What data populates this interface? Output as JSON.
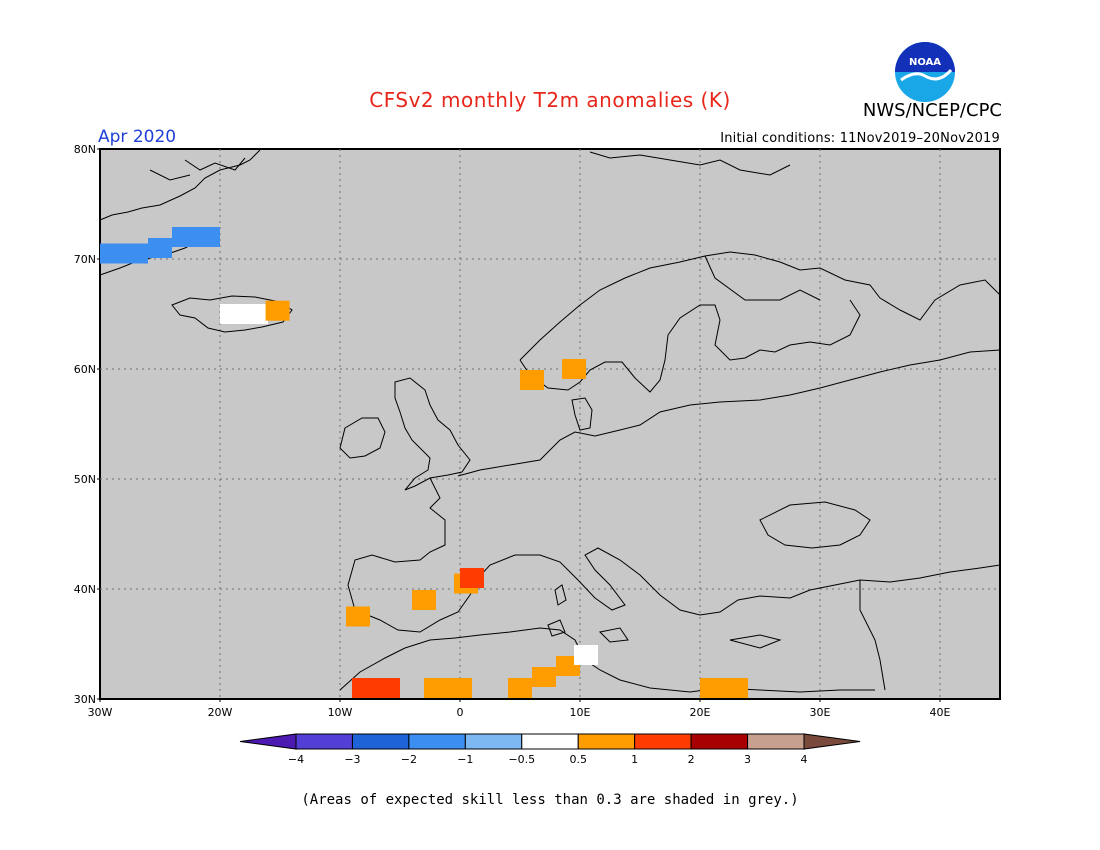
{
  "header": {
    "title": "CFSv2 monthly T2m anomalies (K)",
    "agency": "NWS/NCEP/CPC",
    "logo_text": "NOAA",
    "month": "Apr 2020",
    "initial_conditions": "Initial conditions: 11Nov2019–20Nov2019"
  },
  "map": {
    "region": "Europe",
    "background_color": "#c8c8c8",
    "lat_labels": [
      "30N",
      "40N",
      "50N",
      "60N",
      "70N",
      "80N"
    ],
    "lat_values": [
      30,
      40,
      50,
      60,
      70,
      80
    ],
    "lon_labels": [
      "30W",
      "20W",
      "10W",
      "0",
      "10E",
      "20E",
      "30E",
      "40E"
    ],
    "lon_values": [
      -30,
      -20,
      -10,
      0,
      10,
      20,
      30,
      40
    ],
    "lon_range": [
      -30,
      45
    ],
    "lat_range": [
      30,
      80
    ],
    "anomaly_cells": [
      {
        "lon": -29,
        "lat": 70.5,
        "class": "-1"
      },
      {
        "lon": -27,
        "lat": 70.5,
        "class": "-1"
      },
      {
        "lon": -25,
        "lat": 71,
        "class": "-1"
      },
      {
        "lon": -23,
        "lat": 72,
        "class": "-1"
      },
      {
        "lon": -21,
        "lat": 72,
        "class": "-1"
      },
      {
        "lon": -19,
        "lat": 65,
        "class": "0"
      },
      {
        "lon": -17,
        "lat": 65,
        "class": "0"
      },
      {
        "lon": -15.2,
        "lat": 65.3,
        "class": "0.5"
      },
      {
        "lon": 6,
        "lat": 59,
        "class": "0.5"
      },
      {
        "lon": 9.5,
        "lat": 60,
        "class": "0.5"
      },
      {
        "lon": -8.5,
        "lat": 37.5,
        "class": "0.5"
      },
      {
        "lon": -3,
        "lat": 39,
        "class": "0.5"
      },
      {
        "lon": 0.5,
        "lat": 40.5,
        "class": "0.5"
      },
      {
        "lon": 1,
        "lat": 41,
        "class": "1"
      },
      {
        "lon": -8,
        "lat": 31,
        "class": "1"
      },
      {
        "lon": -6,
        "lat": 31,
        "class": "1"
      },
      {
        "lon": -2,
        "lat": 31,
        "class": "0.5"
      },
      {
        "lon": 0,
        "lat": 31,
        "class": "0.5"
      },
      {
        "lon": 5,
        "lat": 31,
        "class": "0.5"
      },
      {
        "lon": 7,
        "lat": 32,
        "class": "0.5"
      },
      {
        "lon": 9,
        "lat": 33,
        "class": "0.5"
      },
      {
        "lon": 10.5,
        "lat": 34,
        "class": "0"
      },
      {
        "lon": 21,
        "lat": 31,
        "class": "0.5"
      },
      {
        "lon": 23,
        "lat": 31,
        "class": "0.5"
      }
    ],
    "land_color": "#c8c8c8",
    "grid_color": "#707070"
  },
  "legend": {
    "class_colors": [
      "#4c1ab0",
      "#5240d6",
      "#1f63d8",
      "#3c8ef0",
      "#7db8f2",
      "#ffffff",
      "#ff9c00",
      "#ff3c00",
      "#a80000",
      "#c7a08f",
      "#7a4b3c"
    ],
    "class_keys": [
      "-4",
      "-3",
      "-2",
      "-1",
      "-0.5",
      "0",
      "0.5",
      "1",
      "2",
      "3",
      "4"
    ],
    "tick_labels": [
      "−4",
      "−3",
      "−2",
      "−1",
      "−0.5",
      "0.5",
      "1",
      "2",
      "3",
      "4"
    ]
  },
  "footnote": "(Areas of expected skill less than 0.3 are shaded in grey.)"
}
